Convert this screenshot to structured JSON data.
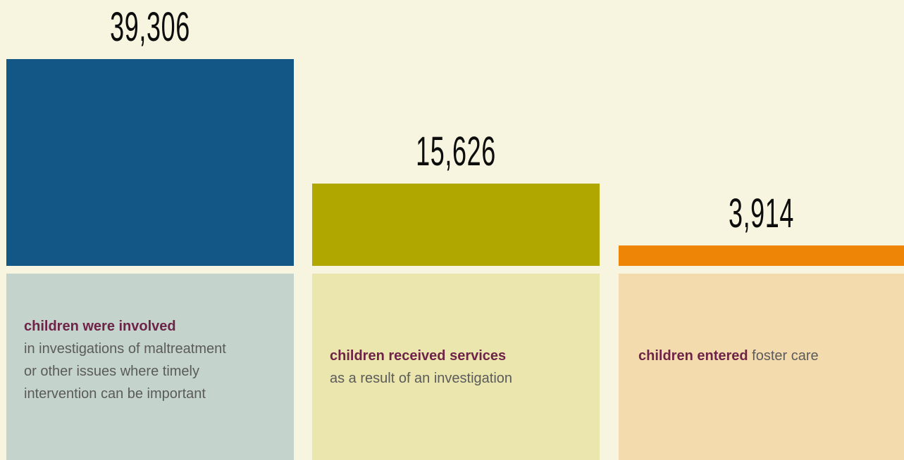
{
  "chart_data": {
    "type": "bar",
    "categories": [
      "children were involved",
      "children received services",
      "children entered"
    ],
    "values": [
      39306,
      15626,
      3914
    ],
    "value_labels": [
      "39,306",
      "15,626",
      "3,914"
    ],
    "colors": [
      "#135786",
      "#b0a800",
      "#ef8506"
    ],
    "panel_colors": [
      "#c4d3cb",
      "#ebe6ae",
      "#f4dbad"
    ],
    "ylim": [
      0,
      39306
    ]
  },
  "panels": [
    {
      "strong": "children were involved",
      "lines": [
        "in investigations of maltreatment",
        "or other issues where timely",
        "intervention can be important"
      ]
    },
    {
      "strong": "children received services",
      "lines": [
        "as a result of an investigation"
      ]
    },
    {
      "strong": "children entered",
      "rest": " foster care"
    }
  ]
}
